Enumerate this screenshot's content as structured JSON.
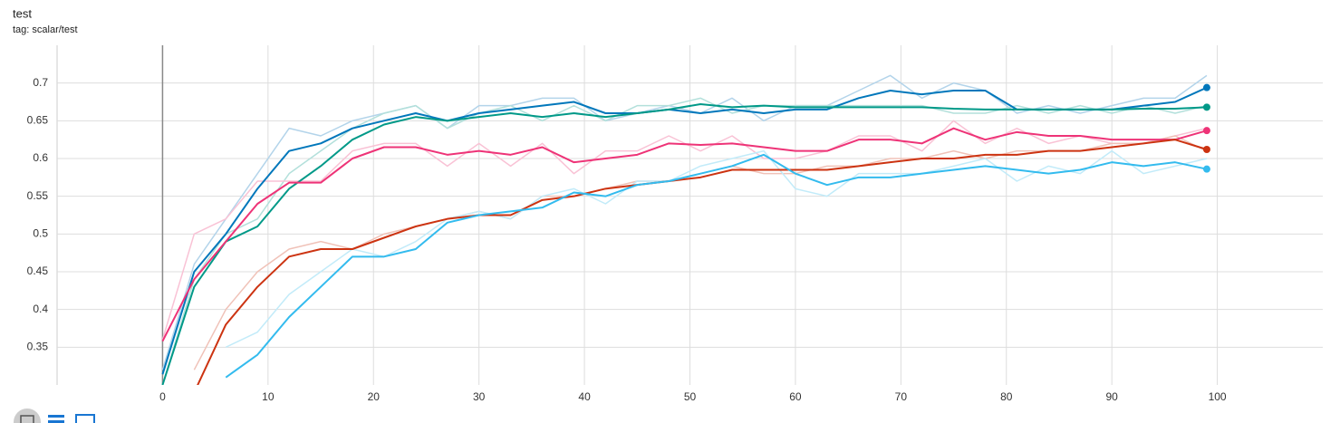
{
  "chart_data": {
    "type": "line",
    "title": "test",
    "subtitle": "tag: scalar/test",
    "x": [
      0,
      3,
      6,
      9,
      12,
      15,
      18,
      21,
      24,
      27,
      30,
      33,
      36,
      39,
      42,
      45,
      48,
      51,
      54,
      57,
      60,
      63,
      66,
      69,
      72,
      75,
      78,
      81,
      84,
      87,
      90,
      93,
      96,
      99
    ],
    "xlim": [
      -10,
      110
    ],
    "xticks": [
      0,
      10,
      20,
      30,
      40,
      50,
      60,
      70,
      80,
      90,
      100
    ],
    "ylim": [
      0.3,
      0.75
    ],
    "yticks": [
      0.35,
      0.4,
      0.45,
      0.5,
      0.55,
      0.6,
      0.65,
      0.7
    ],
    "grid": true,
    "series": [
      {
        "color": "#b3d4ea",
        "values": [
          0.32,
          0.46,
          0.52,
          0.58,
          0.64,
          0.63,
          0.65,
          0.66,
          0.67,
          0.64,
          0.67,
          0.67,
          0.68,
          0.68,
          0.65,
          0.66,
          0.67,
          0.66,
          0.68,
          0.65,
          0.67,
          0.67,
          0.69,
          0.71,
          0.68,
          0.7,
          0.69,
          0.66,
          0.67,
          0.66,
          0.67,
          0.68,
          0.68,
          0.71
        ]
      },
      {
        "color": "#b3e0db",
        "values": [
          0.3,
          0.44,
          0.5,
          0.52,
          0.58,
          0.61,
          0.64,
          0.66,
          0.67,
          0.64,
          0.66,
          0.67,
          0.65,
          0.67,
          0.65,
          0.67,
          0.67,
          0.68,
          0.66,
          0.67,
          0.67,
          0.67,
          0.67,
          0.67,
          0.67,
          0.66,
          0.66,
          0.67,
          0.66,
          0.67,
          0.66,
          0.67,
          0.66,
          0.67
        ]
      },
      {
        "color": "#f9c2d5",
        "values": [
          0.36,
          0.5,
          0.52,
          0.57,
          0.57,
          0.57,
          0.61,
          0.62,
          0.62,
          0.59,
          0.62,
          0.59,
          0.62,
          0.58,
          0.61,
          0.61,
          0.63,
          0.61,
          0.63,
          0.6,
          0.6,
          0.61,
          0.63,
          0.63,
          0.61,
          0.65,
          0.62,
          0.64,
          0.62,
          0.63,
          0.62,
          0.62,
          0.63,
          0.64
        ]
      },
      {
        "color": "#f0c2b8",
        "values": [
          null,
          0.32,
          0.4,
          0.45,
          0.48,
          0.49,
          0.48,
          0.5,
          0.51,
          0.52,
          0.53,
          0.52,
          0.55,
          0.55,
          0.56,
          0.57,
          0.57,
          0.58,
          0.59,
          0.58,
          0.58,
          0.59,
          0.59,
          0.6,
          0.6,
          0.61,
          0.6,
          0.61,
          0.61,
          0.61,
          0.62,
          0.62,
          0.63,
          0.61
        ]
      },
      {
        "color": "#c2ebf9",
        "values": [
          null,
          null,
          0.35,
          0.37,
          0.42,
          0.45,
          0.48,
          0.47,
          0.49,
          0.52,
          0.53,
          0.52,
          0.55,
          0.56,
          0.54,
          0.57,
          0.57,
          0.59,
          0.6,
          0.61,
          0.56,
          0.55,
          0.58,
          0.58,
          0.58,
          0.59,
          0.6,
          0.57,
          0.59,
          0.58,
          0.61,
          0.58,
          0.59,
          0.6
        ]
      },
      {
        "color": "#0077bb",
        "end_dot": true,
        "values": [
          0.314,
          0.45,
          0.5,
          0.56,
          0.61,
          0.62,
          0.64,
          0.65,
          0.66,
          0.65,
          0.66,
          0.665,
          0.67,
          0.675,
          0.66,
          0.66,
          0.665,
          0.66,
          0.665,
          0.66,
          0.665,
          0.665,
          0.68,
          0.69,
          0.685,
          0.69,
          0.69,
          0.665,
          0.665,
          0.665,
          0.665,
          0.67,
          0.675,
          0.694
        ]
      },
      {
        "color": "#009988",
        "end_dot": true,
        "values": [
          0.3,
          0.43,
          0.49,
          0.51,
          0.56,
          0.59,
          0.625,
          0.645,
          0.655,
          0.65,
          0.655,
          0.66,
          0.655,
          0.66,
          0.655,
          0.66,
          0.665,
          0.672,
          0.668,
          0.67,
          0.668,
          0.668,
          0.668,
          0.668,
          0.668,
          0.666,
          0.665,
          0.665,
          0.665,
          0.665,
          0.665,
          0.666,
          0.666,
          0.668
        ]
      },
      {
        "color": "#ee3377",
        "end_dot": true,
        "values": [
          0.358,
          0.44,
          0.49,
          0.54,
          0.568,
          0.568,
          0.6,
          0.615,
          0.615,
          0.605,
          0.61,
          0.605,
          0.615,
          0.595,
          0.6,
          0.605,
          0.62,
          0.618,
          0.62,
          0.615,
          0.61,
          0.61,
          0.625,
          0.625,
          0.62,
          0.64,
          0.625,
          0.635,
          0.63,
          0.63,
          0.625,
          0.625,
          0.625,
          0.637
        ]
      },
      {
        "color": "#cc3311",
        "end_dot": true,
        "values": [
          null,
          0.29,
          0.38,
          0.43,
          0.47,
          0.48,
          0.48,
          0.495,
          0.51,
          0.52,
          0.525,
          0.525,
          0.545,
          0.55,
          0.56,
          0.565,
          0.57,
          0.575,
          0.585,
          0.585,
          0.585,
          0.585,
          0.59,
          0.595,
          0.6,
          0.6,
          0.605,
          0.605,
          0.61,
          0.61,
          0.615,
          0.62,
          0.625,
          0.612
        ]
      },
      {
        "color": "#33bbee",
        "end_dot": true,
        "values": [
          null,
          null,
          0.31,
          0.34,
          0.39,
          0.43,
          0.47,
          0.47,
          0.48,
          0.515,
          0.525,
          0.53,
          0.535,
          0.555,
          0.55,
          0.565,
          0.57,
          0.58,
          0.59,
          0.605,
          0.58,
          0.565,
          0.575,
          0.575,
          0.58,
          0.585,
          0.59,
          0.585,
          0.58,
          0.585,
          0.595,
          0.59,
          0.595,
          0.586
        ]
      }
    ]
  }
}
